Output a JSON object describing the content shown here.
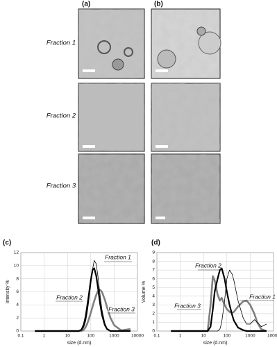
{
  "figure": {
    "panel_labels": [
      "(a)",
      "(b)"
    ],
    "row_labels": [
      "Fraction 1",
      "Fraction 2",
      "Fraction 3"
    ]
  },
  "chart_data": [
    {
      "type": "line",
      "label": "(c)",
      "xlabel": "size (d.nm)",
      "ylabel": "Intensity %",
      "xscale": "log",
      "grid": true,
      "xlim": [
        0.1,
        10000
      ],
      "xticks": [
        0.1,
        1,
        10,
        100,
        1000,
        10000
      ],
      "ylim": [
        0,
        12
      ],
      "yticks": [
        0,
        2,
        4,
        6,
        8,
        10,
        12
      ],
      "x": [
        0.4,
        10,
        30,
        40,
        50,
        60,
        70,
        80,
        100,
        120,
        140,
        170,
        200,
        250,
        300,
        400,
        500,
        700,
        1000,
        2000,
        5000
      ],
      "series": [
        {
          "name": "Fraction 1",
          "color": "#000000",
          "values": [
            0,
            0,
            0,
            0.1,
            0.6,
            1.5,
            2.8,
            4.3,
            7.2,
            9.5,
            10.8,
            10.3,
            8.5,
            5.5,
            3.3,
            1.2,
            0.4,
            0,
            0,
            0,
            0
          ]
        },
        {
          "name": "Fraction 2",
          "color": "#000000",
          "values": [
            0,
            0,
            0,
            0.2,
            1.0,
            2.2,
            3.8,
            5.2,
            7.8,
            9.4,
            9.6,
            8.5,
            6.8,
            4.2,
            2.5,
            0.9,
            0.3,
            0,
            0,
            0,
            0
          ]
        },
        {
          "name": "Fraction 3",
          "color": "#808080",
          "values": [
            0,
            0,
            0,
            0,
            0.2,
            0.6,
            1.1,
            1.7,
            2.8,
            3.8,
            4.6,
            5.5,
            6.1,
            6.3,
            6.0,
            4.8,
            3.6,
            2.0,
            0.9,
            0.1,
            0.3
          ]
        }
      ]
    },
    {
      "type": "line",
      "label": "(d)",
      "xlabel": "size (d.nm)",
      "ylabel": "Volume %",
      "xscale": "log",
      "grid": true,
      "xlim": [
        0.1,
        10000
      ],
      "xticks": [
        0.1,
        1,
        10,
        100,
        1000,
        10000
      ],
      "ylim": [
        0,
        9
      ],
      "yticks": [
        0,
        1,
        2,
        3,
        4,
        5,
        6,
        7,
        8,
        9
      ],
      "x": [
        0.4,
        10,
        15,
        20,
        25,
        30,
        40,
        50,
        60,
        80,
        100,
        130,
        170,
        200,
        300,
        500,
        700,
        1000,
        1500,
        2000,
        3000,
        5000
      ],
      "series": [
        {
          "name": "Fraction 1",
          "color": "#000000",
          "values": [
            0,
            0,
            0,
            0,
            0,
            0,
            0,
            0.2,
            1.0,
            3.5,
            6.0,
            7.0,
            6.5,
            5.8,
            3.5,
            1.5,
            0.8,
            0.8,
            1.3,
            1.0,
            0.5,
            0.8
          ]
        },
        {
          "name": "Fraction 2",
          "color": "#000000",
          "values": [
            0,
            0,
            0,
            0.5,
            2.5,
            4.5,
            6.0,
            7.0,
            7.2,
            6.0,
            4.5,
            3.0,
            1.8,
            1.2,
            0.4,
            0.1,
            0,
            0,
            0,
            0,
            0,
            0
          ]
        },
        {
          "name": "Fraction 3",
          "color": "#808080",
          "values": [
            0,
            0,
            0,
            3.0,
            6.3,
            5.8,
            4.2,
            3.5,
            3.8,
            3.0,
            2.5,
            2.2,
            2.1,
            2.2,
            2.8,
            3.4,
            3.5,
            3.0,
            2.0,
            1.0,
            0.2,
            0
          ]
        }
      ]
    }
  ]
}
